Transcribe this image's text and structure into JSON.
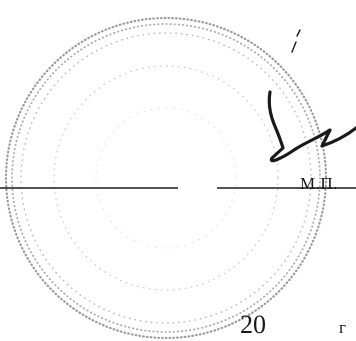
{
  "document": {
    "stamp_label": "М.П.",
    "date_number": "20",
    "year_mark": "г"
  },
  "colors": {
    "ink": "#1a1a1a",
    "stamp_dots": "#8a8a8a",
    "paper": "#ffffff"
  }
}
